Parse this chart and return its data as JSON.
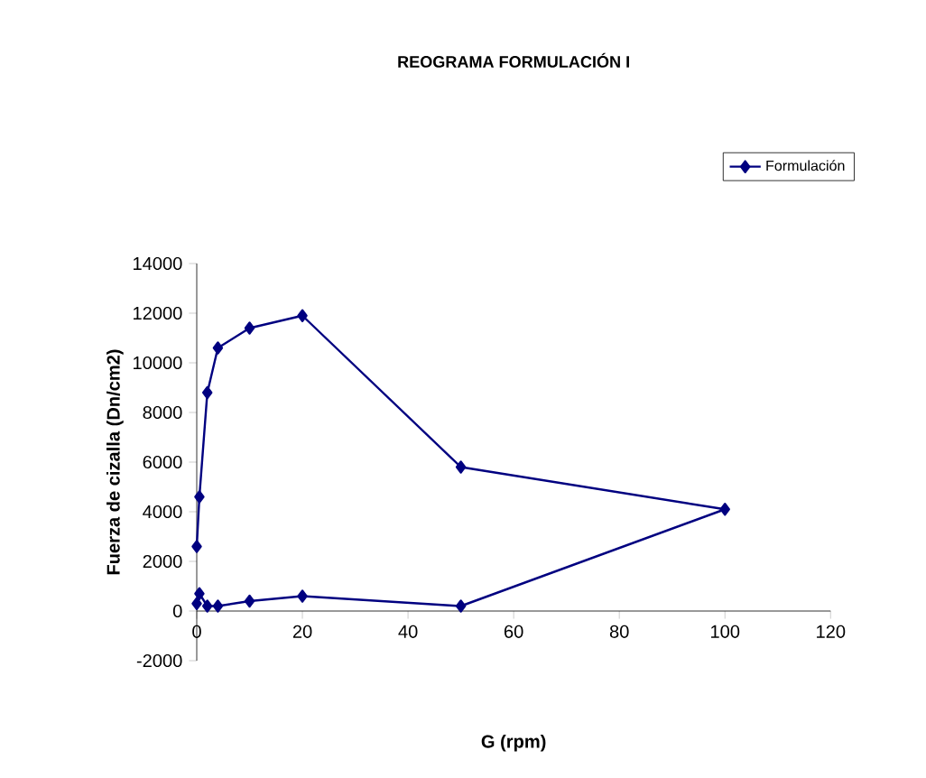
{
  "chart_data": {
    "type": "line",
    "title": "REOGRAMA FORMULACIÓN I",
    "xlabel": "G (rpm)",
    "ylabel": "Fuerza de cizalla (Dn/cm2)",
    "series": [
      {
        "name": "Formulación",
        "color": "#000080",
        "x": [
          0,
          0.5,
          2,
          4,
          10,
          20,
          50,
          100,
          50,
          20,
          10,
          4,
          2,
          0.5,
          0
        ],
        "values": [
          2600,
          4600,
          8800,
          10600,
          11400,
          11900,
          5800,
          4100,
          200,
          600,
          400,
          200,
          200,
          700,
          300
        ]
      }
    ],
    "xlim": [
      0,
      120
    ],
    "xticks": [
      0,
      20,
      40,
      60,
      80,
      100,
      120
    ],
    "ylim": [
      -2000,
      14000
    ],
    "yticks": [
      -2000,
      0,
      2000,
      4000,
      6000,
      8000,
      10000,
      12000,
      14000
    ],
    "grid": false,
    "legend": "top right",
    "marker": "diamond",
    "line_style": "solid"
  }
}
